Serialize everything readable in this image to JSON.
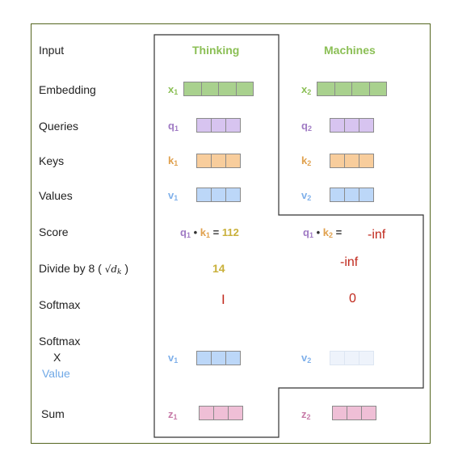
{
  "row_labels": {
    "input": "Input",
    "embedding": "Embedding",
    "queries": "Queries",
    "keys": "Keys",
    "values": "Values",
    "score": "Score",
    "divide": "Divide by 8 (",
    "divide_sqrt": "√d",
    "divide_sqrt_sub": "k",
    "divide_close": ")",
    "softmax": "Softmax",
    "softmax_x_line1": "Softmax",
    "softmax_x_line2": "X",
    "softmax_x_line3": "Value",
    "sum": "Sum"
  },
  "columns": {
    "thinking": {
      "header": "Thinking",
      "x": "x",
      "x_sub": "1",
      "q": "q",
      "q_sub": "1",
      "k": "k",
      "k_sub": "1",
      "v": "v",
      "v_sub": "1",
      "score_q": "q",
      "score_q_sub": "1",
      "score_dot": "•",
      "score_k": "k",
      "score_k_sub": "1",
      "score_eq": "=",
      "score_value": "112",
      "divided": "14",
      "softmax": "I",
      "wv": "v",
      "wv_sub": "1",
      "z": "z",
      "z_sub": "1"
    },
    "machines": {
      "header": "Machines",
      "x": "x",
      "x_sub": "2",
      "q": "q",
      "q_sub": "2",
      "k": "k",
      "k_sub": "2",
      "v": "v",
      "v_sub": "2",
      "score_q": "q",
      "score_q_sub": "1",
      "score_dot": "•",
      "score_k": "k",
      "score_k_sub": "2",
      "score_eq": "=",
      "score_value": "-inf",
      "divided": "-inf",
      "softmax": "0",
      "wv": "v",
      "wv_sub": "2",
      "z": "z",
      "z_sub": "2"
    }
  },
  "colors": {
    "frame": "#54651f",
    "embedding": "#a9d18e",
    "query": "#d7c4f0",
    "key": "#f8cd9c",
    "value": "#bcd7f8",
    "value_faded": "#eef3fb",
    "sum": "#efbfd6",
    "red": "#c0281c"
  }
}
